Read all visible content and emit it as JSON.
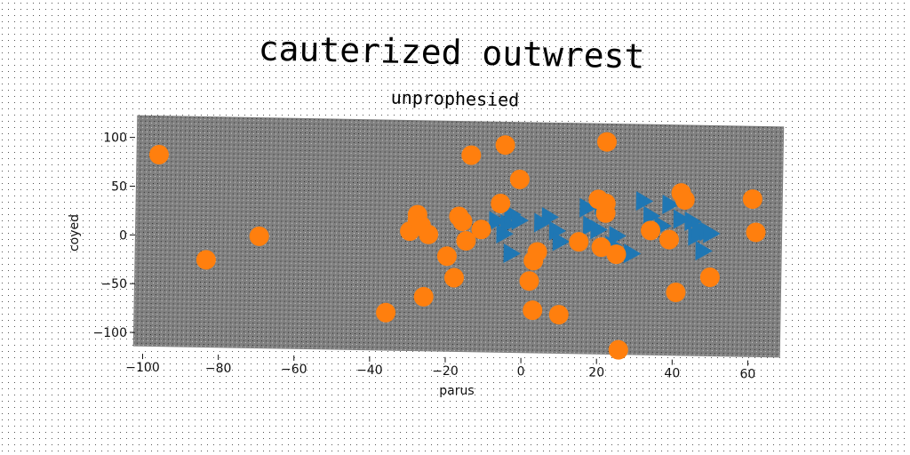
{
  "title": "cauterized outwrest",
  "chart_data": {
    "type": "scatter",
    "title": "unprophesied",
    "xlabel": "parus",
    "ylabel": "coyed",
    "xlim": [
      -102,
      70
    ],
    "ylim": [
      -120,
      117
    ],
    "xticks": [
      "−100",
      "−80",
      "−60",
      "−40",
      "−20",
      "0",
      "20",
      "40",
      "60"
    ],
    "yticks": [
      "−100",
      "−50",
      "0",
      "50",
      "100"
    ],
    "grid": false,
    "plot_background": "#808080",
    "series": [
      {
        "marker": "triangle-right",
        "color": "#1f77b4",
        "points": [
          [
            -6,
            15
          ],
          [
            -3,
            12
          ],
          [
            -4,
            2
          ],
          [
            -2,
            22
          ],
          [
            -2,
            -18
          ],
          [
            0,
            16
          ],
          [
            6,
            14
          ],
          [
            8,
            20
          ],
          [
            10,
            6
          ],
          [
            11,
            -5
          ],
          [
            18,
            30
          ],
          [
            19,
            12
          ],
          [
            21,
            8
          ],
          [
            22,
            33
          ],
          [
            25,
            -8
          ],
          [
            26,
            2
          ],
          [
            30,
            -16
          ],
          [
            33,
            38
          ],
          [
            35,
            23
          ],
          [
            38,
            13
          ],
          [
            40,
            35
          ],
          [
            43,
            20
          ],
          [
            46,
            18
          ],
          [
            47,
            3
          ],
          [
            49,
            -12
          ],
          [
            50,
            8
          ],
          [
            48,
            10
          ],
          [
            51,
            6
          ]
        ]
      },
      {
        "marker": "circle",
        "color": "#ff7f0e",
        "points": [
          [
            -96,
            77
          ],
          [
            -83,
            -30
          ],
          [
            -69,
            -5
          ],
          [
            -35,
            -81
          ],
          [
            -29,
            3
          ],
          [
            -27,
            15
          ],
          [
            -27,
            20
          ],
          [
            -26,
            9
          ],
          [
            -25,
            -64
          ],
          [
            -24,
            0
          ],
          [
            -19,
            -22
          ],
          [
            -17,
            -44
          ],
          [
            -16,
            19
          ],
          [
            -15,
            14
          ],
          [
            -14,
            -6
          ],
          [
            -13,
            82
          ],
          [
            -10,
            6
          ],
          [
            -5,
            33
          ],
          [
            -4,
            93
          ],
          [
            0,
            58
          ],
          [
            3,
            -46
          ],
          [
            4,
            -76
          ],
          [
            4,
            -25
          ],
          [
            5,
            -16
          ],
          [
            11,
            -80
          ],
          [
            16,
            -5
          ],
          [
            21,
            39
          ],
          [
            22,
            -10
          ],
          [
            23,
            25
          ],
          [
            23,
            35
          ],
          [
            23,
            98
          ],
          [
            26,
            -17
          ],
          [
            27,
            -115
          ],
          [
            35,
            8
          ],
          [
            40,
            -1
          ],
          [
            42,
            -55
          ],
          [
            43,
            47
          ],
          [
            44,
            40
          ],
          [
            51,
            -39
          ],
          [
            62,
            42
          ],
          [
            63,
            8
          ]
        ]
      }
    ]
  }
}
